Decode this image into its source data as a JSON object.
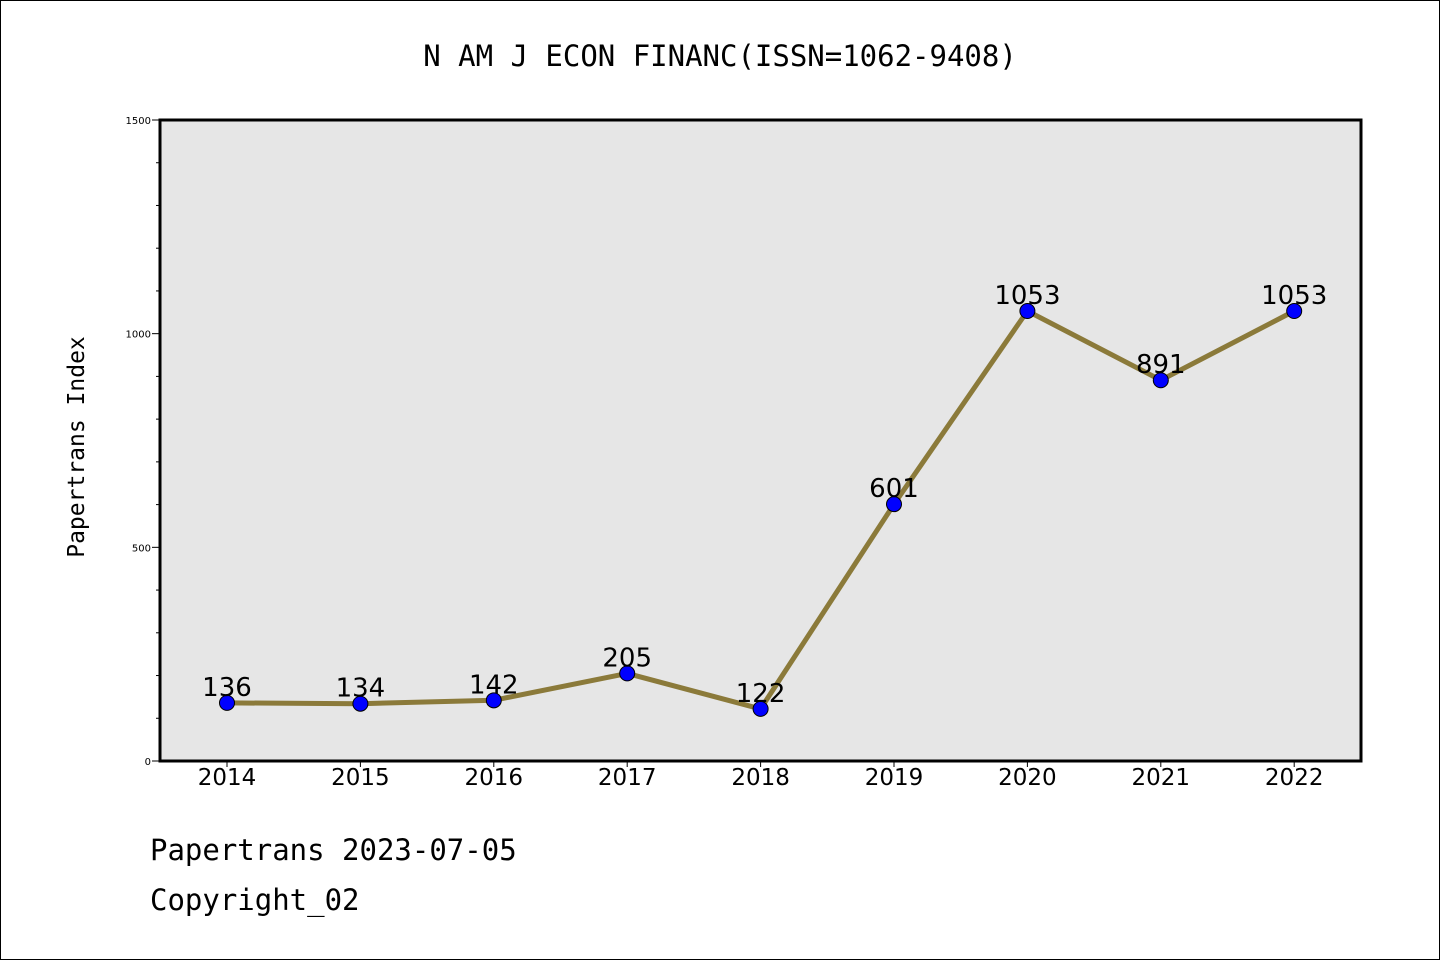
{
  "chart_data": {
    "type": "line",
    "title": "N AM J ECON FINANC(ISSN=1062-9408)",
    "xlabel": "",
    "ylabel": "Papertrans Index",
    "categories": [
      "2014",
      "2015",
      "2016",
      "2017",
      "2018",
      "2019",
      "2020",
      "2021",
      "2022"
    ],
    "series": [
      {
        "values": [
          136,
          134,
          142,
          205,
          122,
          601,
          1053,
          891,
          1053
        ],
        "data_labels": [
          "136",
          "134",
          "142",
          "205",
          "122",
          "601",
          "1053",
          "891",
          "1053"
        ]
      }
    ],
    "ylim": [
      0,
      1500
    ],
    "y_ticks": [
      0,
      500,
      1000,
      1500
    ],
    "y_tick_labels": [
      "0",
      "500",
      "1000",
      "1500"
    ],
    "y_minor_step": 100,
    "grid": false,
    "legend": "none",
    "colors": {
      "line": "#8B7A3A",
      "marker": "#0000FF",
      "plot_background": "#E6E6E6"
    }
  },
  "footer": {
    "line1": "Papertrans 2023-07-05",
    "line2": "Copyright_02"
  }
}
